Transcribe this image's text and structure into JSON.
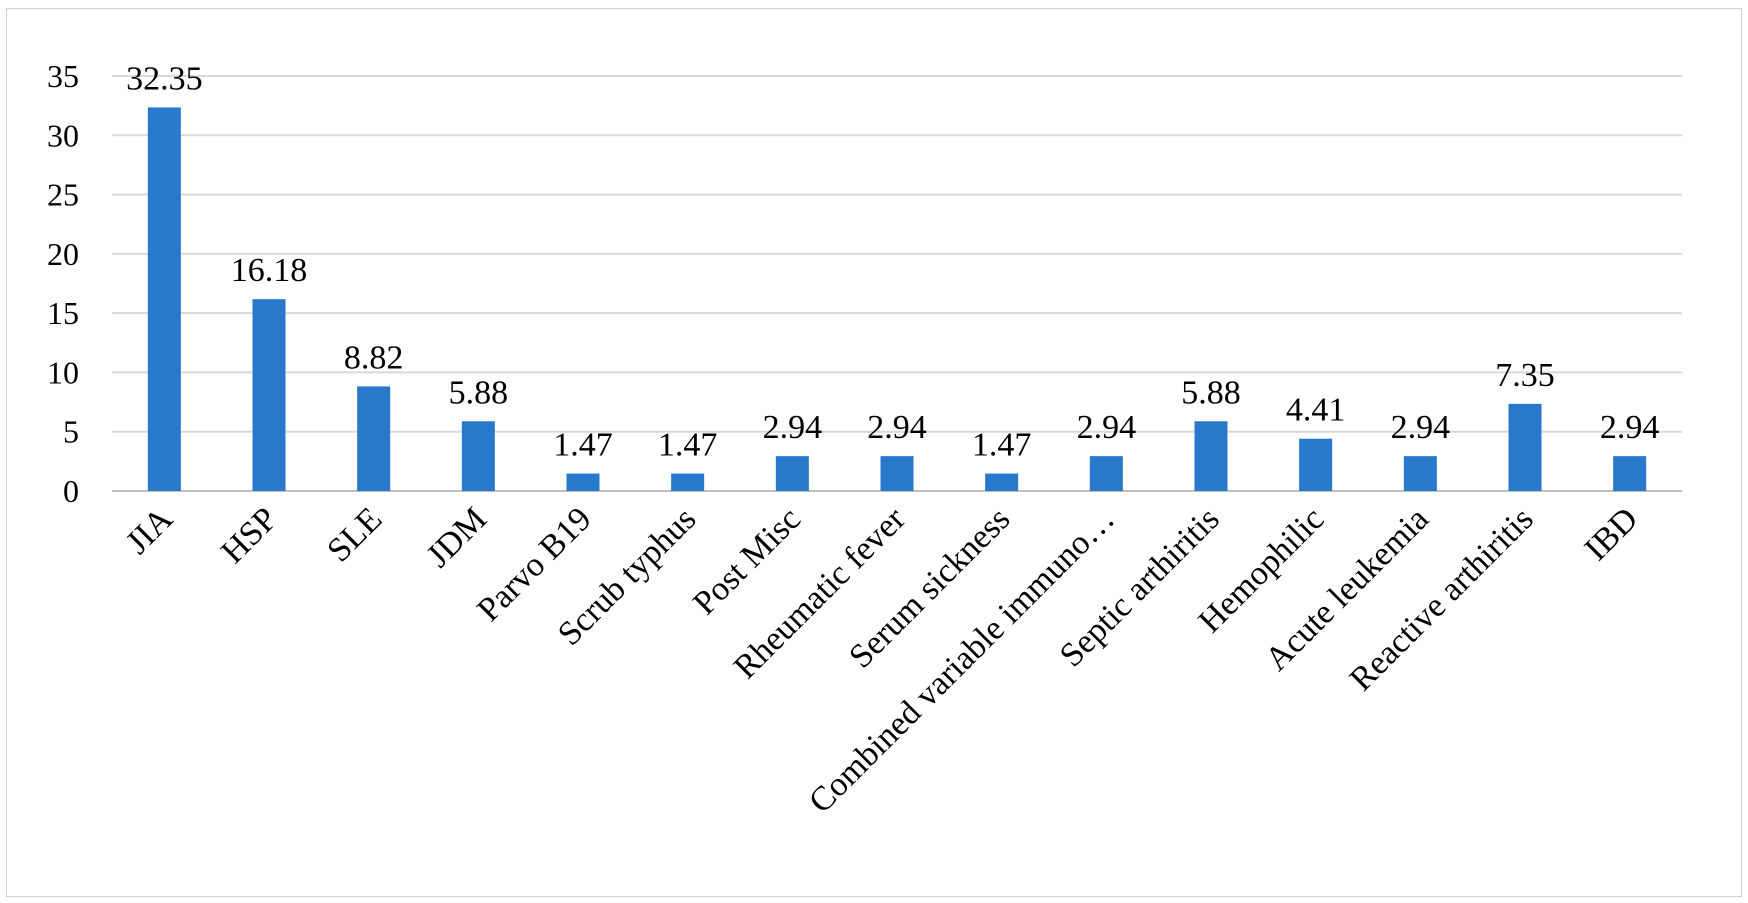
{
  "chart_data": {
    "type": "bar",
    "title": "",
    "xlabel": "",
    "ylabel": "",
    "categories": [
      "JIA",
      "HSP",
      "SLE",
      "JDM",
      "Parvo B19",
      "Scrub typhus",
      "Post Misc",
      "Rheumatic fever",
      "Serum sickness",
      "Combined variable immuno…",
      "Septic arthiritis",
      "Hemophilic",
      "Acute leukemia",
      "Reactive arthiritis",
      "IBD"
    ],
    "values": [
      32.35,
      16.18,
      8.82,
      5.88,
      1.47,
      1.47,
      2.94,
      2.94,
      1.47,
      2.94,
      5.88,
      4.41,
      2.94,
      7.35,
      2.94
    ],
    "data_labels": [
      "32.35",
      "16.18",
      "8.82",
      "5.88",
      "1.47",
      "1.47",
      "2.94",
      "2.94",
      "1.47",
      "2.94",
      "5.88",
      "4.41",
      "2.94",
      "7.35",
      "2.94"
    ],
    "ylim": [
      0,
      35
    ],
    "yticks": [
      0,
      5,
      10,
      15,
      20,
      25,
      30,
      35
    ],
    "grid": true,
    "legend": "none",
    "bar_color": "#2878cc"
  }
}
